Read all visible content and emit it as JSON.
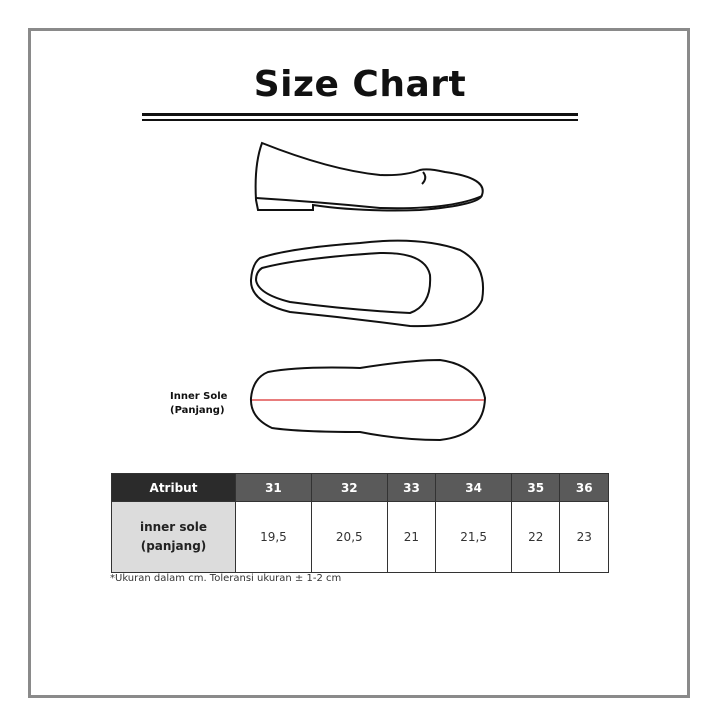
{
  "title": "Size Chart",
  "illustration": {
    "label_line1": "Inner Sole",
    "label_line2": "(Panjang)",
    "measure_color": "#e05050"
  },
  "table": {
    "header": [
      "Atribut",
      "31",
      "32",
      "33",
      "34",
      "35",
      "36"
    ],
    "row": {
      "label_line1": "inner sole",
      "label_line2": "(panjang)",
      "values": [
        "19,5",
        "20,5",
        "21",
        "21,5",
        "22",
        "23"
      ]
    }
  },
  "note": "*Ukuran dalam cm. Toleransi ukuran ± 1-2 cm"
}
